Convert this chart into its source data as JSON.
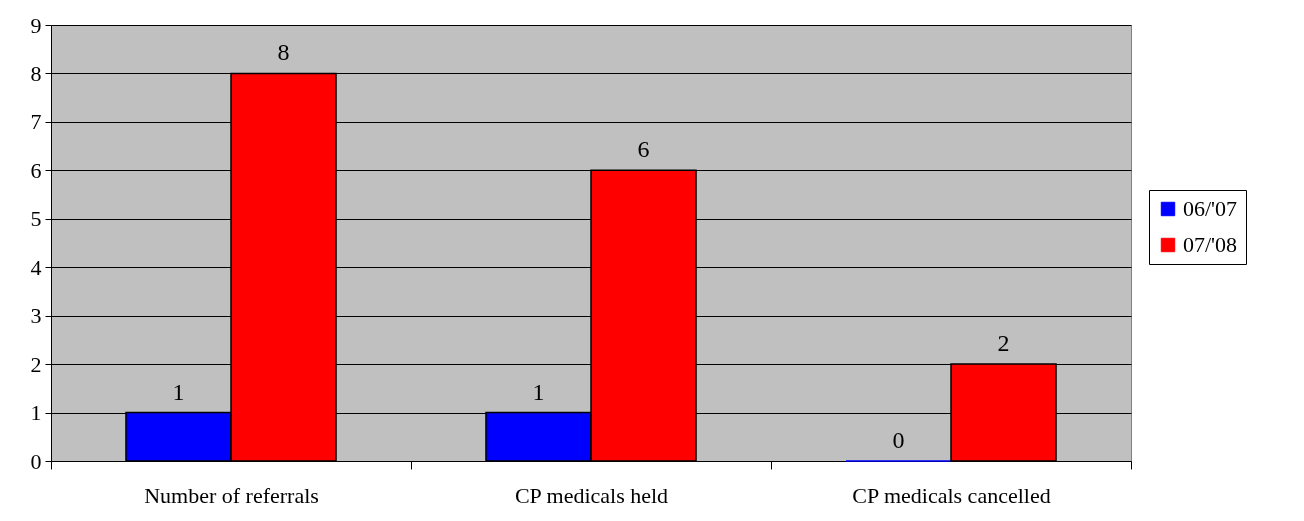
{
  "chart_data": {
    "type": "bar",
    "categories": [
      "Number of referrals",
      "CP medicals held",
      "CP medicals cancelled"
    ],
    "series": [
      {
        "name": "06/'07",
        "color": "#0000ff",
        "values": [
          1,
          1,
          0
        ]
      },
      {
        "name": "07/'08",
        "color": "#ff0000",
        "values": [
          8,
          6,
          2
        ]
      }
    ],
    "ylim": [
      0,
      9
    ],
    "yticks": [
      0,
      1,
      2,
      3,
      4,
      5,
      6,
      7,
      8,
      9
    ],
    "grid": "y",
    "legend": "right",
    "data_labels": true
  }
}
